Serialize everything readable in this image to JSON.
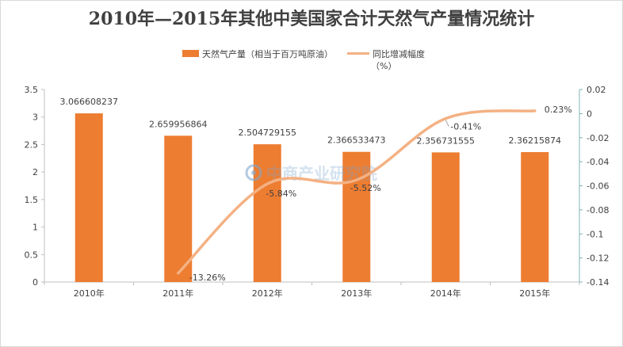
{
  "chart_data": {
    "type": "bar+line",
    "title": "2010年—2015年其他中美国家合计天然气产量情况统计",
    "categories": [
      "2010年",
      "2011年",
      "2012年",
      "2013年",
      "2014年",
      "2015年"
    ],
    "series": [
      {
        "name": "天然气产量（相当于百万吨原油）",
        "type": "bar",
        "axis": "left",
        "color": "#ed7d31",
        "values": [
          3.066608237,
          2.659956864,
          2.504729155,
          2.366533473,
          2.356731555,
          2.36215874
        ],
        "labels": [
          "3.066608237",
          "2.659956864",
          "2.504729155",
          "2.366533473",
          "2.356731555",
          "2.36215874"
        ]
      },
      {
        "name": "同比增减幅度",
        "name_line2": "（%）",
        "type": "line",
        "axis": "right",
        "color": "#f4b183",
        "values": [
          null,
          -0.1326,
          -0.0584,
          -0.0552,
          -0.0041,
          0.0023
        ],
        "labels": [
          "",
          "-13.26%",
          "-5.84%",
          "-5.52%",
          "-0.41%",
          "0.23%"
        ]
      }
    ],
    "ylim_left": [
      0,
      3.5
    ],
    "yticks_left": [
      "0",
      "0.5",
      "1",
      "1.5",
      "2",
      "2.5",
      "3",
      "3.5"
    ],
    "ylim_right": [
      -0.14,
      0.02
    ],
    "yticks_right": [
      "-0.14",
      "-0.12",
      "-0.1",
      "-0.08",
      "-0.06",
      "-0.04",
      "-0.02",
      "0",
      "0.02"
    ],
    "grid": false,
    "legend_position": "top"
  },
  "watermark": "中商产业研究院",
  "colors": {
    "bar": "#ed7d31",
    "line": "#f4b183",
    "axis_right": "#7fb3b3",
    "axis": "#bfbfbf"
  }
}
